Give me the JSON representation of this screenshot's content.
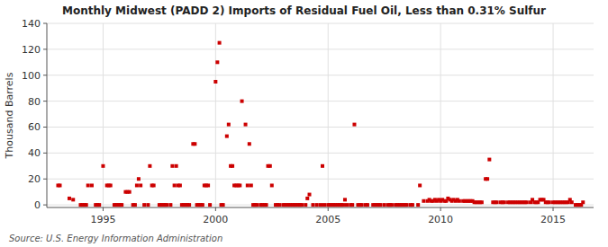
{
  "chart_data": {
    "type": "scatter",
    "title": "Monthly Midwest (PADD 2) Imports of Residual Fuel Oil, Less than 0.31% Sulfur",
    "y_label": "Thousand Barrels",
    "annotations": [
      "Source: U.S. Energy Information Administration"
    ],
    "color": "#cc0000",
    "marker": "square",
    "grid": true,
    "xlim": [
      1992.5,
      2016.8
    ],
    "ylim": [
      -2,
      140
    ],
    "xticks": [
      1995,
      2000,
      2005,
      2010,
      2015
    ],
    "yticks": [
      0,
      20,
      40,
      60,
      80,
      100,
      120,
      140
    ],
    "x": [
      1993.0,
      1993.08,
      1993.5,
      1993.67,
      1994.0,
      1994.08,
      1994.17,
      1994.25,
      1994.33,
      1994.5,
      1994.67,
      1994.75,
      1994.83,
      1995.0,
      1995.17,
      1995.25,
      1995.33,
      1995.5,
      1995.58,
      1995.67,
      1995.75,
      1995.83,
      1996.0,
      1996.08,
      1996.17,
      1996.33,
      1996.42,
      1996.5,
      1996.58,
      1996.67,
      1996.83,
      1997.0,
      1997.08,
      1997.17,
      1997.25,
      1997.5,
      1997.58,
      1997.67,
      1997.75,
      1997.83,
      1998.0,
      1998.08,
      1998.17,
      1998.25,
      1998.33,
      1998.42,
      1998.5,
      1998.58,
      1998.67,
      1998.75,
      1998.83,
      1999.0,
      1999.08,
      1999.17,
      1999.25,
      1999.33,
      1999.42,
      1999.5,
      1999.58,
      1999.67,
      1999.75,
      2000.0,
      2000.08,
      2000.17,
      2000.25,
      2000.33,
      2000.5,
      2000.58,
      2000.67,
      2000.75,
      2000.83,
      2000.92,
      2001.0,
      2001.08,
      2001.17,
      2001.33,
      2001.42,
      2001.5,
      2001.58,
      2001.67,
      2001.75,
      2001.83,
      2002.0,
      2002.08,
      2002.17,
      2002.25,
      2002.33,
      2002.42,
      2002.5,
      2002.67,
      2002.75,
      2002.83,
      2003.0,
      2003.08,
      2003.17,
      2003.25,
      2003.33,
      2003.42,
      2003.5,
      2003.58,
      2003.67,
      2003.75,
      2003.83,
      2004.0,
      2004.08,
      2004.17,
      2004.33,
      2004.5,
      2004.67,
      2004.75,
      2004.83,
      2005.0,
      2005.08,
      2005.17,
      2005.25,
      2005.33,
      2005.42,
      2005.5,
      2005.58,
      2005.67,
      2005.75,
      2005.83,
      2006.0,
      2006.08,
      2006.17,
      2006.33,
      2006.42,
      2006.5,
      2006.67,
      2006.75,
      2007.0,
      2007.08,
      2007.17,
      2007.25,
      2007.33,
      2007.5,
      2007.67,
      2007.75,
      2007.83,
      2008.0,
      2008.08,
      2008.17,
      2008.25,
      2008.33,
      2008.42,
      2008.5,
      2008.67,
      2008.75,
      2009.0,
      2009.08,
      2009.25,
      2009.42,
      2009.5,
      2009.58,
      2009.67,
      2009.75,
      2009.83,
      2009.92,
      2010.0,
      2010.08,
      2010.17,
      2010.25,
      2010.33,
      2010.42,
      2010.5,
      2010.58,
      2010.67,
      2010.75,
      2010.83,
      2011.0,
      2011.08,
      2011.17,
      2011.25,
      2011.33,
      2011.42,
      2011.5,
      2011.58,
      2011.67,
      2011.75,
      2011.83,
      2012.0,
      2012.08,
      2012.17,
      2012.33,
      2012.42,
      2012.5,
      2012.67,
      2012.75,
      2012.83,
      2013.0,
      2013.08,
      2013.17,
      2013.25,
      2013.33,
      2013.42,
      2013.5,
      2013.58,
      2013.67,
      2013.75,
      2013.83,
      2014.0,
      2014.08,
      2014.17,
      2014.25,
      2014.33,
      2014.42,
      2014.5,
      2014.58,
      2014.67,
      2014.75,
      2014.83,
      2015.0,
      2015.08,
      2015.17,
      2015.25,
      2015.33,
      2015.42,
      2015.5,
      2015.58,
      2015.67,
      2015.75,
      2015.83,
      2016.0,
      2016.08,
      2016.17,
      2016.25,
      2016.33
    ],
    "values": [
      15,
      15,
      5,
      4,
      0,
      0,
      0,
      0,
      15,
      15,
      0,
      0,
      0,
      30,
      15,
      15,
      15,
      0,
      0,
      0,
      0,
      0,
      10,
      10,
      10,
      0,
      0,
      15,
      20,
      15,
      0,
      0,
      30,
      15,
      15,
      0,
      0,
      0,
      0,
      0,
      0,
      30,
      15,
      30,
      15,
      15,
      0,
      0,
      0,
      0,
      0,
      47,
      47,
      0,
      0,
      0,
      0,
      15,
      15,
      15,
      0,
      95,
      110,
      125,
      0,
      0,
      53,
      62,
      30,
      30,
      15,
      15,
      15,
      15,
      80,
      62,
      15,
      47,
      15,
      0,
      0,
      0,
      0,
      0,
      0,
      0,
      30,
      30,
      15,
      0,
      0,
      0,
      0,
      0,
      0,
      0,
      0,
      0,
      0,
      0,
      0,
      0,
      0,
      0,
      5,
      8,
      0,
      0,
      0,
      30,
      0,
      0,
      0,
      0,
      0,
      0,
      0,
      0,
      0,
      0,
      4,
      0,
      0,
      0,
      62,
      0,
      0,
      0,
      0,
      0,
      0,
      0,
      0,
      0,
      0,
      0,
      0,
      0,
      0,
      0,
      0,
      0,
      0,
      0,
      0,
      0,
      0,
      0,
      0,
      15,
      3,
      3,
      4,
      3,
      3,
      4,
      3,
      4,
      3,
      4,
      3,
      3,
      5,
      4,
      3,
      4,
      3,
      4,
      3,
      3,
      3,
      3,
      3,
      3,
      3,
      2,
      2,
      2,
      2,
      2,
      20,
      20,
      35,
      2,
      2,
      2,
      2,
      2,
      2,
      2,
      2,
      2,
      2,
      2,
      2,
      2,
      2,
      2,
      2,
      2,
      2,
      4,
      2,
      2,
      2,
      4,
      4,
      4,
      2,
      2,
      2,
      2,
      2,
      2,
      2,
      2,
      2,
      2,
      2,
      2,
      4,
      2,
      0,
      0,
      0,
      0,
      2
    ]
  }
}
